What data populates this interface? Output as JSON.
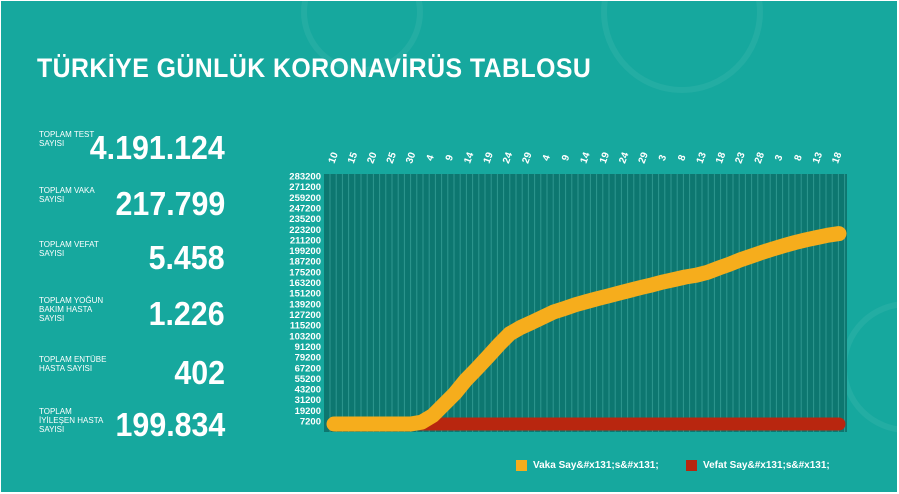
{
  "title": "TÜRKİYE GÜNLÜK KORONAVİRÜS TABLOSU",
  "stats": [
    {
      "label": "TOPLAM TEST SAYISI",
      "value": "4.191.124"
    },
    {
      "label": "TOPLAM VAKA SAYISI",
      "value": "217.799"
    },
    {
      "label": "TOPLAM VEFAT SAYISI",
      "value": "5.458"
    },
    {
      "label": "TOPLAM YOĞUN BAKIM HASTA SAYISI",
      "value": "1.226"
    },
    {
      "label": "TOPLAM ENTÜBE HASTA SAYISI",
      "value": "402"
    },
    {
      "label": "TOPLAM İYİLEŞEN HASTA SAYISI",
      "value": "199.834"
    }
  ],
  "colors": {
    "background": "#16a89e",
    "plot_bg": "#0d7770",
    "grid": "#2f978f",
    "vaka": "#f6ad1c",
    "vefat": "#b8260f",
    "text": "#ffffff"
  },
  "legend": {
    "vaka": "Vaka Say&#x131;s&#x131;",
    "vefat": "Vefat Say&#x131;s&#x131;"
  },
  "chart_data": {
    "type": "line",
    "x_tick_labels": [
      "10",
      "15",
      "20",
      "25",
      "30",
      "4",
      "9",
      "14",
      "19",
      "24",
      "29",
      "4",
      "9",
      "14",
      "19",
      "24",
      "29",
      "3",
      "8",
      "13",
      "18",
      "23",
      "28",
      "3",
      "8",
      "13",
      "18"
    ],
    "y_tick_labels": [
      "7200",
      "19200",
      "31200",
      "43200",
      "55200",
      "67200",
      "79200",
      "91200",
      "103200",
      "115200",
      "127200",
      "139200",
      "151200",
      "163200",
      "175200",
      "187200",
      "199200",
      "211200",
      "223200",
      "235200",
      "247200",
      "259200",
      "271200",
      "283200"
    ],
    "ylim": [
      0,
      283200
    ],
    "grid": true,
    "legend_position": "bottom-right",
    "series": [
      {
        "name": "Vaka Say&#x131;s&#x131;",
        "values": [
          1,
          5,
          18,
          47,
          191,
          670,
          1872,
          5698,
          10827,
          18135,
          30217,
          42282,
          56956,
          69392,
          82329,
          95591,
          107773,
          114653,
          120204,
          126045,
          131744,
          135569,
          139771,
          143114,
          146457,
          149435,
          152587,
          155686,
          158762,
          161531,
          164769,
          167410,
          170132,
          172114,
          175218,
          179831,
          184031,
          188897,
          193115,
          197239,
          200963,
          204610,
          208000,
          211000,
          213500,
          216000,
          217799
        ]
      },
      {
        "name": "Vefat Say&#x131;s&#x131;",
        "values": [
          0,
          0,
          0,
          1,
          3,
          9,
          44,
          131,
          214,
          356,
          649,
          908,
          1198,
          1518,
          1890,
          2259,
          2706,
          2992,
          3258,
          3461,
          3584,
          3739,
          3894,
          4007,
          4096,
          4171,
          4222,
          4276,
          4308,
          4340,
          4369,
          4397,
          4431,
          4461,
          4489,
          4540,
          4609,
          4692,
          4778,
          4861,
          4950,
          5046,
          5131,
          5220,
          5302,
          5382,
          5458
        ]
      }
    ]
  }
}
